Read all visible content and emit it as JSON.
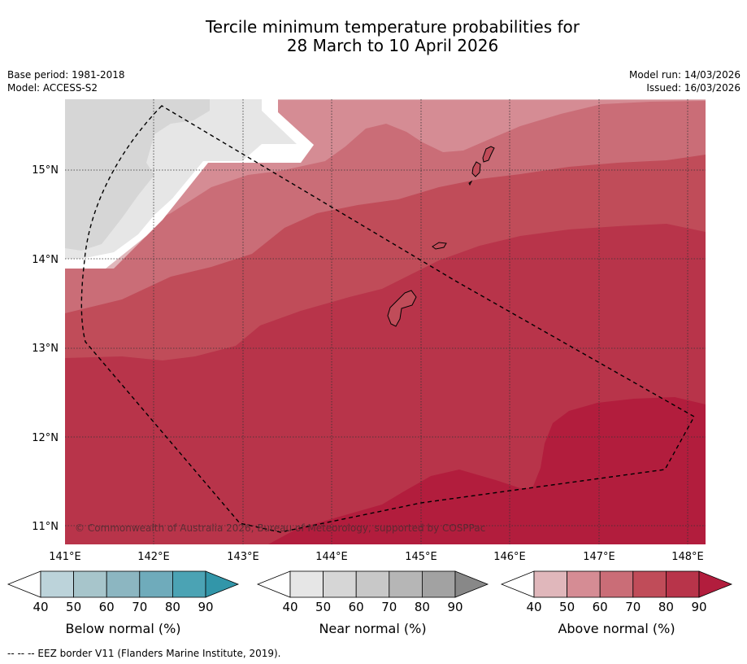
{
  "title_line1": "Tercile minimum temperature probabilities for",
  "title_line2": "28 March to 10 April 2026",
  "base_period": "Base period: 1981-2018",
  "model": "Model: ACCESS-S2",
  "model_run": "Model run: 14/03/2026",
  "issued": "Issued: 16/03/2026",
  "copyright": "© Commonwealth of Australia 2026, Bureau of Meteorology, supported by COSPPac",
  "lat_labels": [
    "15°N",
    "14°N",
    "13°N",
    "12°N",
    "11°N"
  ],
  "lon_labels": [
    "141°E",
    "142°E",
    "143°E",
    "144°E",
    "145°E",
    "146°E",
    "147°E",
    "148°E"
  ],
  "colorbars": [
    {
      "label": "Below normal (%)",
      "ticks": [
        "40",
        "50",
        "60",
        "70",
        "80",
        "90"
      ],
      "colors": [
        "#ffffff",
        "#bcd3da",
        "#a7c5cb",
        "#8cb6c1",
        "#6fabbb",
        "#4ba3b4",
        "#3296a9"
      ]
    },
    {
      "label": "Near normal (%)",
      "ticks": [
        "40",
        "50",
        "60",
        "70",
        "80",
        "90"
      ],
      "colors": [
        "#ffffff",
        "#e6e6e6",
        "#d6d6d6",
        "#c8c8c8",
        "#b6b6b6",
        "#a2a2a2",
        "#888888"
      ]
    },
    {
      "label": "Above normal (%)",
      "ticks": [
        "40",
        "50",
        "60",
        "70",
        "80",
        "90"
      ],
      "colors": [
        "#ffffff",
        "#e0b7bb",
        "#d58c94",
        "#ca6d77",
        "#c04c59",
        "#b8344a",
        "#b21d3d"
      ]
    }
  ],
  "footer": "--  --  -- EEZ border V11 (Flanders Marine Institute, 2019)."
}
